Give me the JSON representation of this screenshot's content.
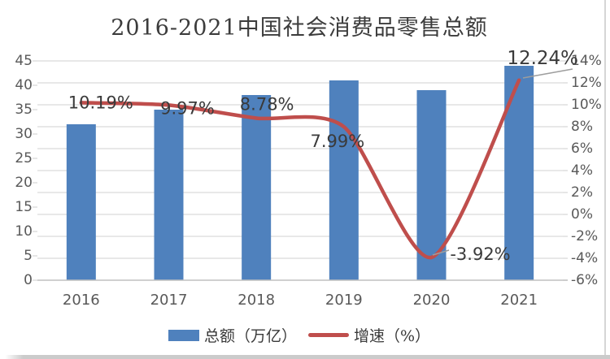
{
  "title": "2016-2021中国社会消费品零售总额",
  "colors": {
    "bar": "#4f81bd",
    "line": "#bf4e4c",
    "grid": "#d9d9d9",
    "axis_line": "#c0c0c0",
    "axis_text": "#595959",
    "data_label_text": "#3a3a3a",
    "leader": "#9d9d9d"
  },
  "chart_data": {
    "type": "bar+line combo",
    "title": "2016-2021中国社会消费品零售总额",
    "categories": [
      "2016",
      "2017",
      "2018",
      "2019",
      "2020",
      "2021"
    ],
    "series": [
      {
        "name": "总额（万亿）",
        "type": "bar",
        "axis": "left",
        "values": [
          32,
          35,
          38,
          41,
          39,
          44
        ]
      },
      {
        "name": "增速（%）",
        "type": "line",
        "axis": "right",
        "values": [
          10.19,
          9.97,
          8.78,
          7.99,
          -3.92,
          12.24
        ],
        "labels": [
          "10.19%",
          "9.97%",
          "8.78%",
          "7.99%",
          "-3.92%",
          "12.24%"
        ]
      }
    ],
    "left_axis": {
      "min": 0,
      "max": 45,
      "step": 5,
      "ticks": [
        "45",
        "40",
        "35",
        "30",
        "25",
        "20",
        "15",
        "10",
        "5",
        "0"
      ]
    },
    "right_axis": {
      "min": -6,
      "max": 14,
      "step": 2,
      "ticks": [
        "14%",
        "12%",
        "10%",
        "8%",
        "6%",
        "4%",
        "2%",
        "0%",
        "-2%",
        "-4%",
        "-6%"
      ]
    },
    "grid": true,
    "legend_position": "bottom"
  },
  "legend": {
    "items": [
      {
        "label": "总额（万亿）",
        "swatch": "bar"
      },
      {
        "label": "增速（%）",
        "swatch": "line"
      }
    ]
  }
}
